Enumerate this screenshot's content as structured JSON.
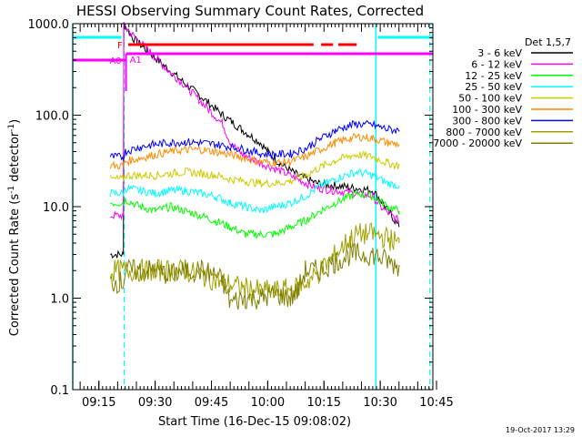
{
  "chart_data": {
    "type": "line",
    "title": "HESSI Observing Summary Count Rates, Corrected",
    "xlabel": "Start Time (16-Dec-15 09:08:02)",
    "ylabel": "Corrected Count Rate (s⁻¹ detector⁻¹)",
    "ylabel_main": "Corrected Count Rate (s",
    "ylabel_mid": " detector",
    "ylabel_end": ")",
    "ylabel_sup": "-1",
    "y_scale": "log",
    "ylim": [
      0.1,
      1000
    ],
    "xlim_minutes": [
      0,
      96
    ],
    "x_ticks": [
      {
        "label": "09:15",
        "m": 6.97
      },
      {
        "label": "09:30",
        "m": 21.97
      },
      {
        "label": "09:45",
        "m": 36.97
      },
      {
        "label": "10:00",
        "m": 51.97
      },
      {
        "label": "10:15",
        "m": 66.97
      },
      {
        "label": "10:30",
        "m": 81.97
      },
      {
        "label": "10:45",
        "m": 96.97
      }
    ],
    "y_ticks": [
      {
        "label": "0.1",
        "v": 0.1
      },
      {
        "label": "1.0",
        "v": 1
      },
      {
        "label": "10.0",
        "v": 10
      },
      {
        "label": "100.0",
        "v": 100
      },
      {
        "label": "1000.0",
        "v": 1000
      }
    ],
    "legend_title": "Det 1,5,7",
    "legend_position": "top-right",
    "series": [
      {
        "name": "3 - 6 keV",
        "color": "#000000",
        "points": [
          [
            10,
            3
          ],
          [
            13.5,
            3
          ],
          [
            13.6,
            1000
          ],
          [
            16,
            700
          ],
          [
            20,
            500
          ],
          [
            25,
            330
          ],
          [
            30,
            220
          ],
          [
            35,
            150
          ],
          [
            40,
            100
          ],
          [
            45,
            70
          ],
          [
            50,
            50
          ],
          [
            52,
            40
          ],
          [
            55,
            30
          ],
          [
            60,
            22
          ],
          [
            65,
            18
          ],
          [
            70,
            17
          ],
          [
            75,
            16
          ],
          [
            80,
            15
          ],
          [
            82,
            12
          ],
          [
            85,
            8
          ],
          [
            87,
            6
          ]
        ]
      },
      {
        "name": "6 - 12 keV",
        "color": "#ff00ff",
        "points": [
          [
            10,
            8
          ],
          [
            13.5,
            8
          ],
          [
            13.6,
            950
          ],
          [
            16,
            750
          ],
          [
            20,
            520
          ],
          [
            25,
            320
          ],
          [
            30,
            210
          ],
          [
            35,
            130
          ],
          [
            40,
            80
          ],
          [
            42,
            50
          ],
          [
            45,
            38
          ],
          [
            50,
            30
          ],
          [
            55,
            25
          ],
          [
            60,
            20
          ],
          [
            65,
            16
          ],
          [
            70,
            15
          ],
          [
            75,
            14
          ],
          [
            80,
            13
          ],
          [
            82,
            10
          ],
          [
            85,
            8
          ],
          [
            87,
            7
          ]
        ]
      },
      {
        "name": "12 - 25 keV",
        "color": "#00ff00",
        "points": [
          [
            10,
            11
          ],
          [
            13.5,
            11
          ],
          [
            14,
            12
          ],
          [
            18,
            10
          ],
          [
            22,
            9
          ],
          [
            26,
            10
          ],
          [
            30,
            9
          ],
          [
            34,
            8
          ],
          [
            38,
            7
          ],
          [
            42,
            6
          ],
          [
            46,
            5
          ],
          [
            50,
            5
          ],
          [
            54,
            5
          ],
          [
            58,
            6
          ],
          [
            62,
            7
          ],
          [
            66,
            9
          ],
          [
            70,
            11
          ],
          [
            74,
            13
          ],
          [
            76,
            14
          ],
          [
            80,
            13
          ],
          [
            84,
            10
          ],
          [
            87,
            9
          ]
        ]
      },
      {
        "name": "25 - 50 keV",
        "color": "#00ffff",
        "points": [
          [
            10,
            14
          ],
          [
            13.5,
            14
          ],
          [
            14,
            16
          ],
          [
            18,
            15
          ],
          [
            22,
            14
          ],
          [
            26,
            15
          ],
          [
            30,
            15
          ],
          [
            34,
            14
          ],
          [
            38,
            13
          ],
          [
            42,
            11
          ],
          [
            46,
            10
          ],
          [
            50,
            9
          ],
          [
            54,
            10
          ],
          [
            58,
            11
          ],
          [
            62,
            13
          ],
          [
            66,
            17
          ],
          [
            70,
            20
          ],
          [
            74,
            23
          ],
          [
            76,
            24
          ],
          [
            80,
            22
          ],
          [
            84,
            18
          ],
          [
            87,
            17
          ]
        ]
      },
      {
        "name": "50 - 100 keV",
        "color": "#cccc00",
        "points": [
          [
            10,
            20
          ],
          [
            13.5,
            20
          ],
          [
            14,
            22
          ],
          [
            18,
            22
          ],
          [
            22,
            22
          ],
          [
            26,
            23
          ],
          [
            30,
            24
          ],
          [
            34,
            23
          ],
          [
            38,
            22
          ],
          [
            42,
            20
          ],
          [
            46,
            19
          ],
          [
            50,
            18
          ],
          [
            54,
            18
          ],
          [
            58,
            19
          ],
          [
            62,
            22
          ],
          [
            66,
            27
          ],
          [
            70,
            32
          ],
          [
            74,
            36
          ],
          [
            76,
            37
          ],
          [
            80,
            35
          ],
          [
            84,
            30
          ],
          [
            87,
            28
          ]
        ]
      },
      {
        "name": "100 - 300 keV",
        "color": "#ff8c00",
        "points": [
          [
            10,
            28
          ],
          [
            13.5,
            28
          ],
          [
            14,
            31
          ],
          [
            18,
            34
          ],
          [
            22,
            37
          ],
          [
            26,
            40
          ],
          [
            30,
            42
          ],
          [
            34,
            42
          ],
          [
            38,
            40
          ],
          [
            42,
            37
          ],
          [
            46,
            34
          ],
          [
            50,
            31
          ],
          [
            54,
            30
          ],
          [
            58,
            31
          ],
          [
            62,
            35
          ],
          [
            66,
            42
          ],
          [
            70,
            50
          ],
          [
            74,
            56
          ],
          [
            76,
            58
          ],
          [
            80,
            56
          ],
          [
            84,
            50
          ],
          [
            87,
            48
          ]
        ]
      },
      {
        "name": "300 - 800 keV",
        "color": "#0000ff",
        "points": [
          [
            10,
            35
          ],
          [
            13.5,
            35
          ],
          [
            14,
            40
          ],
          [
            18,
            45
          ],
          [
            22,
            48
          ],
          [
            26,
            50
          ],
          [
            30,
            51
          ],
          [
            34,
            50
          ],
          [
            38,
            48
          ],
          [
            42,
            45
          ],
          [
            46,
            42
          ],
          [
            50,
            38
          ],
          [
            54,
            37
          ],
          [
            58,
            38
          ],
          [
            62,
            43
          ],
          [
            66,
            55
          ],
          [
            70,
            68
          ],
          [
            74,
            78
          ],
          [
            76,
            80
          ],
          [
            80,
            78
          ],
          [
            84,
            70
          ],
          [
            87,
            68
          ]
        ]
      },
      {
        "name": "800 - 7000 keV",
        "color": "#a0a000",
        "points": [
          [
            10,
            2
          ],
          [
            13.5,
            2
          ],
          [
            14,
            2
          ],
          [
            20,
            2
          ],
          [
            30,
            2
          ],
          [
            40,
            1.5
          ],
          [
            45,
            1.3
          ],
          [
            50,
            1.2
          ],
          [
            55,
            1.2
          ],
          [
            60,
            1.3
          ],
          [
            65,
            1.8
          ],
          [
            70,
            3
          ],
          [
            74,
            4.5
          ],
          [
            76,
            5
          ],
          [
            80,
            5
          ],
          [
            84,
            4.5
          ],
          [
            87,
            4
          ]
        ]
      },
      {
        "name": "7000 - 20000 keV",
        "color": "#808000",
        "points": [
          [
            10,
            1.5
          ],
          [
            13.5,
            1.5
          ],
          [
            14,
            2
          ],
          [
            18,
            2
          ],
          [
            22,
            2
          ],
          [
            26,
            1.8
          ],
          [
            30,
            2
          ],
          [
            34,
            2
          ],
          [
            38,
            1.8
          ],
          [
            40,
            1.5
          ],
          [
            42,
            0.9
          ],
          [
            46,
            1.0
          ],
          [
            50,
            1.0
          ],
          [
            54,
            1.1
          ],
          [
            58,
            1.0
          ],
          [
            60,
            1.2
          ],
          [
            62,
            2
          ],
          [
            66,
            2
          ],
          [
            70,
            2.5
          ],
          [
            74,
            3
          ],
          [
            76,
            3
          ],
          [
            80,
            3
          ],
          [
            84,
            2.5
          ],
          [
            87,
            2.2
          ]
        ]
      }
    ],
    "flags": [
      {
        "label": "F",
        "color": "#ff0000",
        "segments": [
          [
            14.8,
            64.2
          ],
          [
            66.2,
            69.4
          ],
          [
            70.8,
            75.7
          ]
        ]
      },
      {
        "label": "A0",
        "color": "#ff00ff",
        "segments": [
          [
            0,
            14.2
          ]
        ]
      },
      {
        "label": "A1",
        "color": "#ff00ff",
        "segments": [
          [
            14.2,
            96
          ]
        ]
      }
    ],
    "cyan_bars": [
      [
        0,
        13.0
      ],
      [
        81.3,
        96
      ]
    ],
    "solid_lines_minutes": [
      0,
      80.8
    ],
    "dashed_lines_minutes": [
      13.7,
      95.2
    ]
  },
  "timestamp": "19-Oct-2017 13:29"
}
